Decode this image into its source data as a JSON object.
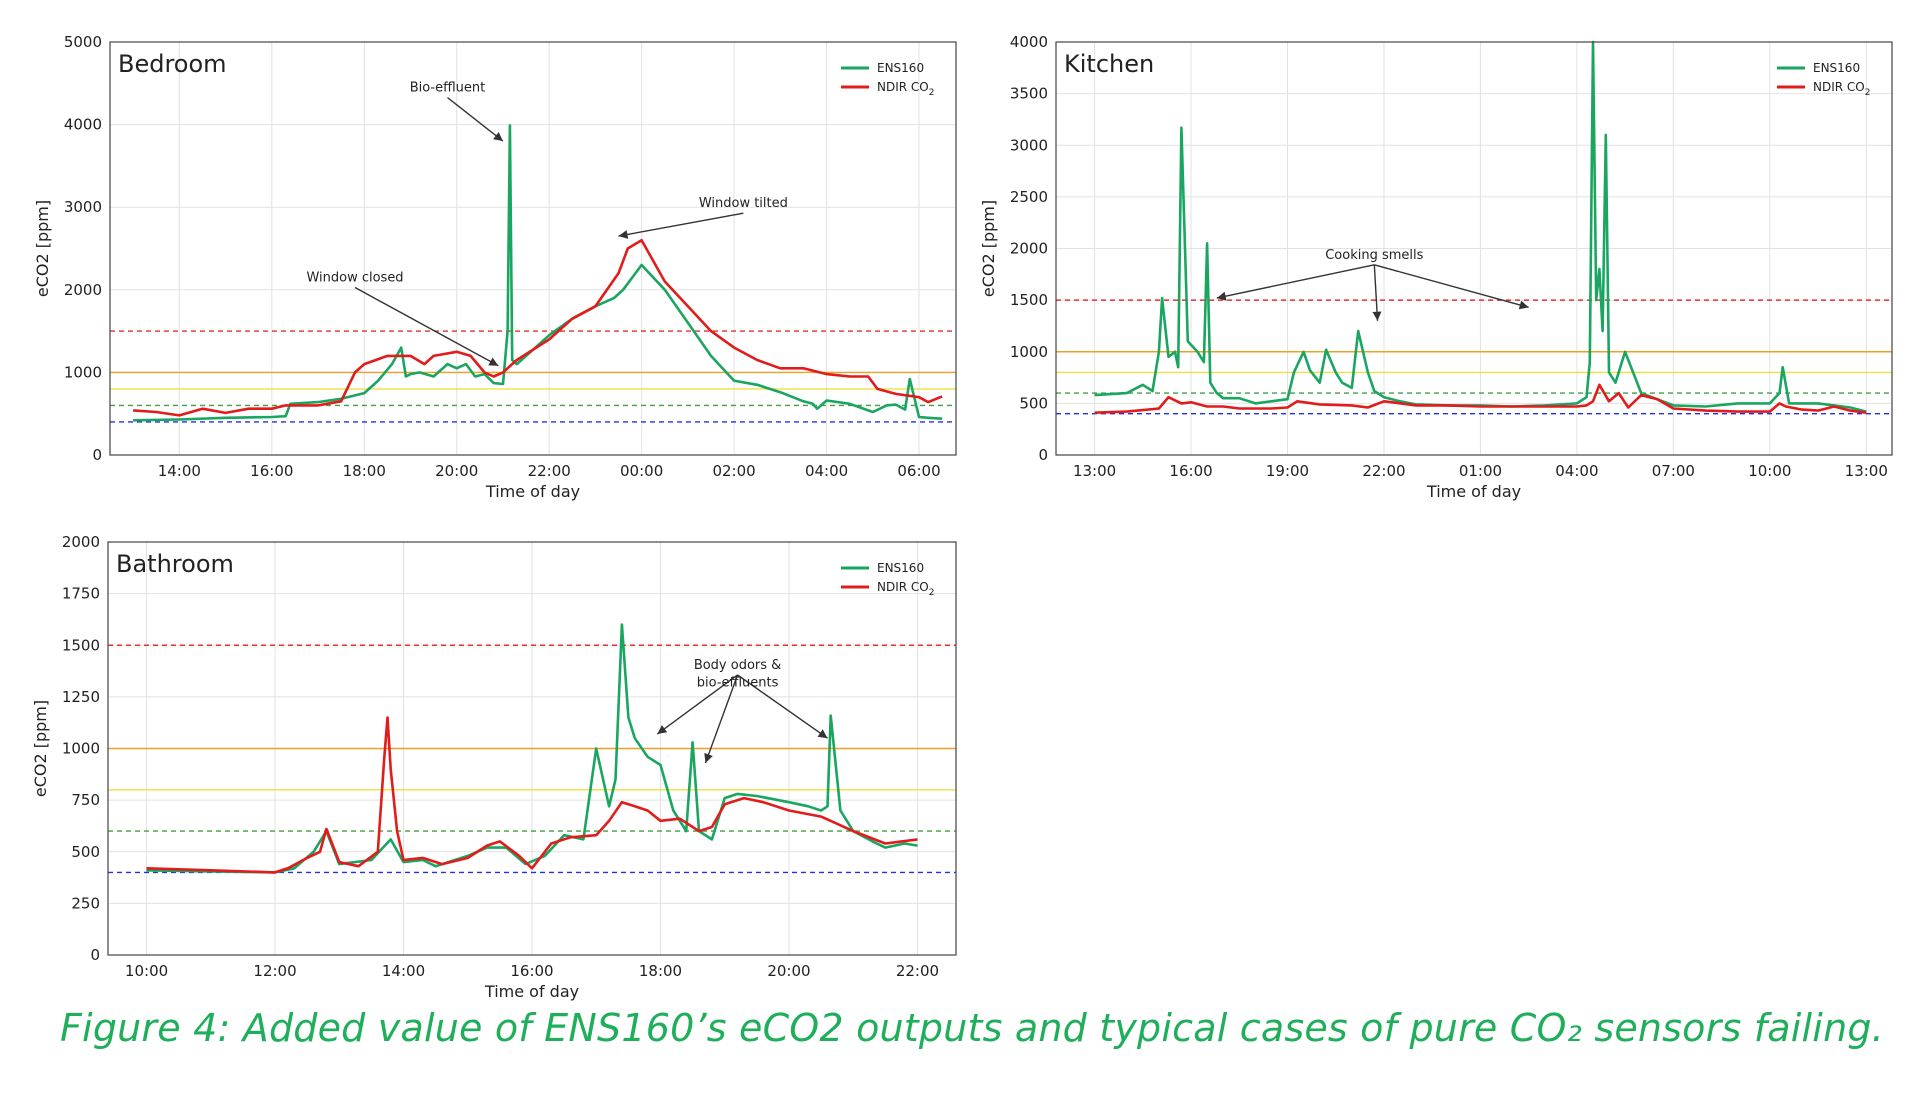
{
  "caption": "Figure 4: Added value of ENS160’s eCO2 outputs and typical cases of pure CO₂ sensors failing.",
  "colors": {
    "ens160": "#1aa660",
    "ndir": "#e21b1b",
    "ref_red": "#e03030",
    "ref_orange": "#f0a020",
    "ref_yellow": "#f0e040",
    "ref_green": "#40a040",
    "ref_blue": "#2030e0",
    "caption": "#1fae5a"
  },
  "chart_data": [
    {
      "type": "line",
      "title": "Bedroom",
      "xlabel": "Time of day",
      "ylabel": "eCO2 [ppm]",
      "xlim": [
        12.5,
        30.8
      ],
      "ylim": [
        0,
        5000
      ],
      "x_tick_values": [
        14,
        16,
        18,
        20,
        22,
        24,
        26,
        28,
        30
      ],
      "x_tick_labels": [
        "14:00",
        "16:00",
        "18:00",
        "20:00",
        "22:00",
        "00:00",
        "02:00",
        "04:00",
        "06:00"
      ],
      "y_ticks": [
        0,
        1000,
        2000,
        3000,
        4000,
        5000
      ],
      "grid": true,
      "legend": {
        "position": "top-right",
        "entries": [
          "ENS160",
          "NDIR CO",
          "2"
        ]
      },
      "reference_lines": [
        {
          "y": 1500,
          "color": "red"
        },
        {
          "y": 1000,
          "color": "orange"
        },
        {
          "y": 800,
          "color": "yellow"
        },
        {
          "y": 600,
          "color": "green"
        },
        {
          "y": 400,
          "color": "blue"
        }
      ],
      "annotations": [
        {
          "text": "Bio-effluent",
          "text_at": [
            19.8,
            4400
          ],
          "arrows_to": [
            [
              21.0,
              3800
            ]
          ]
        },
        {
          "text": "Window tilted",
          "text_at": [
            26.2,
            3000
          ],
          "arrows_to": [
            [
              23.5,
              2650
            ]
          ]
        },
        {
          "text": "Window closed",
          "text_at": [
            17.8,
            2100
          ],
          "arrows_to": [
            [
              20.9,
              1080
            ]
          ]
        }
      ],
      "series": [
        {
          "name": "ENS160",
          "x": [
            13.0,
            14.0,
            15.0,
            16.0,
            16.3,
            16.4,
            17.0,
            17.5,
            18.0,
            18.3,
            18.6,
            18.8,
            18.9,
            19.0,
            19.2,
            19.5,
            19.8,
            20.0,
            20.2,
            20.4,
            20.6,
            20.8,
            21.0,
            21.1,
            21.15,
            21.2,
            21.3,
            21.6,
            22.0,
            22.5,
            23.0,
            23.4,
            23.6,
            24.0,
            24.5,
            25.0,
            25.5,
            26.0,
            26.5,
            27.0,
            27.5,
            27.7,
            27.8,
            28.0,
            28.5,
            29.0,
            29.3,
            29.5,
            29.7,
            29.8,
            30.0,
            30.2,
            30.5
          ],
          "y": [
            420,
            430,
            450,
            460,
            470,
            620,
            640,
            680,
            750,
            900,
            1100,
            1300,
            950,
            980,
            1000,
            950,
            1100,
            1050,
            1100,
            950,
            980,
            870,
            860,
            1500,
            3990,
            1150,
            1100,
            1250,
            1450,
            1650,
            1800,
            1900,
            2000,
            2300,
            2000,
            1600,
            1200,
            900,
            850,
            760,
            650,
            620,
            560,
            660,
            620,
            520,
            600,
            610,
            550,
            920,
            460,
            450,
            440
          ]
        },
        {
          "name": "NDIR CO2",
          "x": [
            13.0,
            13.5,
            14.0,
            14.5,
            15.0,
            15.5,
            16.0,
            16.3,
            17.0,
            17.5,
            17.8,
            18.0,
            18.5,
            19.0,
            19.3,
            19.5,
            20.0,
            20.3,
            20.6,
            20.8,
            21.0,
            21.3,
            22.0,
            22.5,
            23.0,
            23.5,
            23.7,
            24.0,
            24.5,
            25.0,
            25.5,
            26.0,
            26.5,
            27.0,
            27.5,
            28.0,
            28.5,
            28.9,
            29.1,
            29.5,
            30.0,
            30.2,
            30.5
          ],
          "y": [
            540,
            520,
            480,
            560,
            510,
            560,
            560,
            600,
            600,
            650,
            1000,
            1100,
            1200,
            1200,
            1100,
            1200,
            1250,
            1200,
            1000,
            950,
            1000,
            1150,
            1400,
            1650,
            1800,
            2200,
            2500,
            2600,
            2100,
            1800,
            1500,
            1300,
            1150,
            1050,
            1050,
            980,
            950,
            950,
            800,
            740,
            700,
            640,
            710
          ]
        }
      ]
    },
    {
      "type": "line",
      "title": "Kitchen",
      "xlabel": "Time of day",
      "ylabel": "eCO2 [ppm]",
      "xlim": [
        11.8,
        37.8
      ],
      "ylim": [
        0,
        4000
      ],
      "x_tick_values": [
        13,
        16,
        19,
        22,
        25,
        28,
        31,
        34,
        37
      ],
      "x_tick_labels": [
        "13:00",
        "16:00",
        "19:00",
        "22:00",
        "01:00",
        "04:00",
        "07:00",
        "10:00",
        "13:00"
      ],
      "y_ticks": [
        0,
        500,
        1000,
        1500,
        2000,
        2500,
        3000,
        3500,
        4000
      ],
      "grid": true,
      "legend": {
        "position": "top-right",
        "entries": [
          "ENS160",
          "NDIR CO",
          "2"
        ]
      },
      "reference_lines": [
        {
          "y": 1500,
          "color": "red"
        },
        {
          "y": 1000,
          "color": "orange"
        },
        {
          "y": 800,
          "color": "yellow"
        },
        {
          "y": 600,
          "color": "green"
        },
        {
          "y": 400,
          "color": "blue"
        }
      ],
      "annotations": [
        {
          "text": "Cooking smells",
          "text_at": [
            21.7,
            1900
          ],
          "arrows_to": [
            [
              16.8,
              1520
            ],
            [
              21.8,
              1300
            ],
            [
              26.5,
              1430
            ]
          ]
        }
      ],
      "series": [
        {
          "name": "ENS160",
          "x": [
            13.0,
            14.0,
            14.5,
            14.8,
            15.0,
            15.1,
            15.3,
            15.5,
            15.6,
            15.7,
            15.9,
            16.2,
            16.4,
            16.5,
            16.6,
            16.8,
            17.0,
            17.5,
            18.0,
            18.5,
            19.0,
            19.2,
            19.5,
            19.7,
            20.0,
            20.2,
            20.5,
            20.7,
            21.0,
            21.2,
            21.5,
            21.7,
            22.0,
            22.5,
            23.0,
            24.0,
            25.0,
            26.0,
            27.0,
            28.0,
            28.3,
            28.4,
            28.5,
            28.6,
            28.7,
            28.8,
            28.9,
            29.0,
            29.2,
            29.5,
            30.0,
            31.0,
            32.0,
            33.0,
            34.0,
            34.3,
            34.4,
            34.6,
            35.0,
            35.5,
            36.0,
            36.5,
            37.0
          ],
          "y": [
            580,
            600,
            680,
            620,
            1000,
            1520,
            950,
            1000,
            850,
            3170,
            1100,
            1000,
            900,
            2050,
            700,
            600,
            550,
            550,
            500,
            520,
            540,
            800,
            1000,
            820,
            700,
            1020,
            800,
            700,
            650,
            1200,
            800,
            620,
            560,
            520,
            490,
            480,
            480,
            470,
            480,
            500,
            560,
            900,
            4000,
            1500,
            1800,
            1200,
            3100,
            800,
            700,
            1000,
            600,
            480,
            470,
            500,
            500,
            600,
            850,
            500,
            500,
            500,
            480,
            460,
            420
          ]
        },
        {
          "name": "NDIR CO2",
          "x": [
            13.0,
            14.0,
            15.0,
            15.3,
            15.7,
            16.0,
            16.5,
            17.0,
            17.5,
            18.0,
            18.5,
            19.0,
            19.3,
            20.0,
            21.0,
            21.5,
            22.0,
            23.0,
            24.0,
            25.0,
            26.0,
            27.0,
            28.0,
            28.3,
            28.5,
            28.7,
            29.0,
            29.3,
            29.6,
            30.0,
            30.5,
            31.0,
            32.0,
            33.0,
            34.0,
            34.3,
            34.5,
            35.0,
            35.5,
            36.0,
            36.5,
            37.0
          ],
          "y": [
            410,
            420,
            450,
            560,
            500,
            510,
            470,
            470,
            450,
            450,
            450,
            460,
            520,
            490,
            480,
            460,
            520,
            480,
            480,
            470,
            470,
            470,
            470,
            480,
            520,
            680,
            520,
            600,
            460,
            580,
            540,
            450,
            430,
            420,
            420,
            500,
            470,
            440,
            430,
            470,
            430,
            410
          ]
        }
      ]
    },
    {
      "type": "line",
      "title": "Bathroom",
      "xlabel": "Time of day",
      "ylabel": "eCO2 [ppm]",
      "xlim": [
        9.4,
        22.6
      ],
      "ylim": [
        0,
        2000
      ],
      "x_tick_values": [
        10,
        12,
        14,
        16,
        18,
        20,
        22
      ],
      "x_tick_labels": [
        "10:00",
        "12:00",
        "14:00",
        "16:00",
        "18:00",
        "20:00",
        "22:00"
      ],
      "y_ticks": [
        0,
        250,
        500,
        750,
        1000,
        1250,
        1500,
        1750,
        2000
      ],
      "grid": true,
      "legend": {
        "position": "top-right",
        "entries": [
          "ENS160",
          "NDIR CO",
          "2"
        ]
      },
      "reference_lines": [
        {
          "y": 1500,
          "color": "red"
        },
        {
          "y": 1000,
          "color": "orange"
        },
        {
          "y": 800,
          "color": "yellow"
        },
        {
          "y": 600,
          "color": "green"
        },
        {
          "y": 400,
          "color": "blue"
        }
      ],
      "annotations": [
        {
          "text": "Body odors &",
          "text_at": [
            19.2,
            1385
          ],
          "arrows_to": [
            [
              17.95,
              1070
            ],
            [
              18.7,
              930
            ],
            [
              20.6,
              1050
            ]
          ]
        },
        {
          "text": "bio-effluents",
          "text_at": [
            19.2,
            1300
          ],
          "arrows_to": []
        }
      ],
      "series": [
        {
          "name": "ENS160",
          "x": [
            10.0,
            11.0,
            12.0,
            12.3,
            12.6,
            12.8,
            13.0,
            13.5,
            13.8,
            14.0,
            14.3,
            14.5,
            15.0,
            15.3,
            15.6,
            15.9,
            16.2,
            16.5,
            16.8,
            17.0,
            17.2,
            17.3,
            17.4,
            17.5,
            17.6,
            17.8,
            18.0,
            18.2,
            18.4,
            18.5,
            18.6,
            18.8,
            19.0,
            19.2,
            19.5,
            20.0,
            20.3,
            20.5,
            20.6,
            20.65,
            20.8,
            21.0,
            21.3,
            21.5,
            21.8,
            22.0
          ],
          "y": [
            410,
            405,
            400,
            420,
            500,
            600,
            440,
            460,
            560,
            450,
            460,
            430,
            480,
            520,
            520,
            440,
            480,
            580,
            560,
            1000,
            720,
            850,
            1600,
            1150,
            1050,
            960,
            920,
            700,
            600,
            1030,
            600,
            560,
            760,
            780,
            770,
            740,
            720,
            700,
            720,
            1160,
            700,
            600,
            550,
            520,
            540,
            530
          ]
        },
        {
          "name": "NDIR CO2",
          "x": [
            10.0,
            11.0,
            12.0,
            12.2,
            12.5,
            12.7,
            12.8,
            13.0,
            13.3,
            13.6,
            13.7,
            13.75,
            13.8,
            13.9,
            14.0,
            14.3,
            14.6,
            15.0,
            15.3,
            15.5,
            15.8,
            16.0,
            16.3,
            16.6,
            17.0,
            17.2,
            17.4,
            17.6,
            17.8,
            18.0,
            18.3,
            18.6,
            18.8,
            19.0,
            19.3,
            19.6,
            20.0,
            20.5,
            21.0,
            21.5,
            22.0
          ],
          "y": [
            420,
            410,
            400,
            420,
            470,
            500,
            610,
            450,
            430,
            500,
            950,
            1150,
            900,
            600,
            460,
            470,
            440,
            470,
            530,
            550,
            480,
            420,
            540,
            570,
            580,
            650,
            740,
            720,
            700,
            650,
            660,
            600,
            620,
            730,
            760,
            740,
            700,
            670,
            600,
            540,
            560
          ]
        }
      ]
    }
  ]
}
